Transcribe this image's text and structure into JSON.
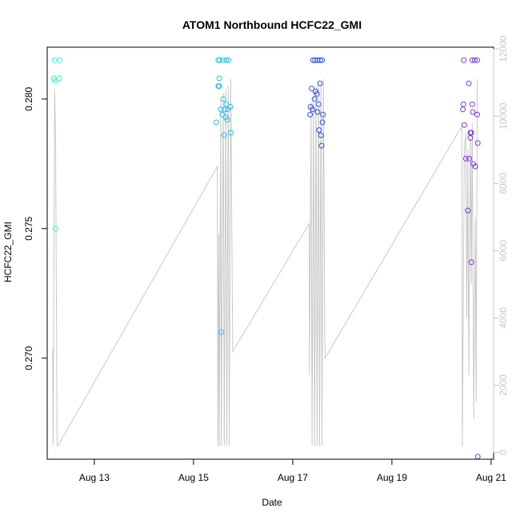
{
  "chart_data": {
    "type": "scatter",
    "title": "ATOM1 Northbound HCFC22_GMI",
    "xlabel": "Date",
    "ylabel": "HCFC22_GMI",
    "x_ticks": [
      {
        "label": "Aug 13",
        "day": 13
      },
      {
        "label": "Aug 15",
        "day": 15
      },
      {
        "label": "Aug 17",
        "day": 17
      },
      {
        "label": "Aug 19",
        "day": 19
      },
      {
        "label": "Aug 21",
        "day": 21
      }
    ],
    "xlim_day": [
      12.05,
      21.05
    ],
    "ylim": [
      0.2661,
      0.282
    ],
    "y_ticks": [
      0.27,
      0.275,
      0.28
    ],
    "y2_ticks": [
      0,
      2000,
      4000,
      6000,
      8000,
      10000,
      12000
    ],
    "y2lim": [
      -200,
      12050
    ],
    "scatter_series": [
      {
        "color": "#33f5c4",
        "points": [
          [
            12.2,
            0.2815
          ],
          [
            12.3,
            0.2815
          ],
          [
            12.18,
            0.2808
          ],
          [
            12.21,
            0.2807
          ],
          [
            12.29,
            0.2808
          ],
          [
            12.22,
            0.275
          ]
        ]
      },
      {
        "color": "#29c0ea",
        "points": [
          [
            15.5,
            0.2815
          ],
          [
            15.53,
            0.2815
          ],
          [
            15.6,
            0.2815
          ],
          [
            15.66,
            0.2815
          ],
          [
            15.71,
            0.2815
          ],
          [
            15.52,
            0.2808
          ],
          [
            15.5,
            0.2805
          ],
          [
            15.52,
            0.2805
          ],
          [
            15.6,
            0.28
          ],
          [
            15.66,
            0.2798
          ],
          [
            15.55,
            0.2796
          ],
          [
            15.63,
            0.2796
          ],
          [
            15.69,
            0.2796
          ],
          [
            15.74,
            0.2797
          ],
          [
            15.58,
            0.2794
          ],
          [
            15.65,
            0.2793
          ],
          [
            15.68,
            0.2792
          ],
          [
            15.46,
            0.2791
          ],
          [
            15.62,
            0.2786
          ],
          [
            15.75,
            0.2787
          ],
          [
            15.56,
            0.271
          ]
        ]
      },
      {
        "color": "#2d4ff0",
        "points": [
          [
            17.41,
            0.2815
          ],
          [
            17.45,
            0.2815
          ],
          [
            17.5,
            0.2815
          ],
          [
            17.55,
            0.2815
          ],
          [
            17.59,
            0.2815
          ],
          [
            17.38,
            0.2804
          ],
          [
            17.55,
            0.2806
          ],
          [
            17.46,
            0.2803
          ],
          [
            17.49,
            0.2802
          ],
          [
            17.44,
            0.28
          ],
          [
            17.52,
            0.2798
          ],
          [
            17.36,
            0.2797
          ],
          [
            17.4,
            0.2796
          ],
          [
            17.5,
            0.2795
          ],
          [
            17.35,
            0.2794
          ],
          [
            17.61,
            0.2794
          ],
          [
            17.6,
            0.2791
          ],
          [
            17.53,
            0.2788
          ],
          [
            17.57,
            0.2786
          ],
          [
            17.58,
            0.2782
          ]
        ]
      },
      {
        "color": "#7a35ee",
        "points": [
          [
            20.45,
            0.2815
          ],
          [
            20.62,
            0.2815
          ],
          [
            20.67,
            0.2815
          ],
          [
            20.72,
            0.2815
          ],
          [
            20.55,
            0.2806
          ],
          [
            20.44,
            0.2798
          ],
          [
            20.62,
            0.2798
          ],
          [
            20.43,
            0.2796
          ],
          [
            20.63,
            0.2795
          ],
          [
            20.72,
            0.2794
          ],
          [
            20.46,
            0.279
          ],
          [
            20.58,
            0.2787
          ],
          [
            20.6,
            0.2787
          ],
          [
            20.58,
            0.2785
          ],
          [
            20.73,
            0.2783
          ],
          [
            20.49,
            0.2777
          ],
          [
            20.56,
            0.2777
          ],
          [
            20.64,
            0.2775
          ],
          [
            20.68,
            0.2774
          ],
          [
            20.53,
            0.2757
          ],
          [
            20.6,
            0.2737
          ],
          [
            20.73,
            0.2662
          ]
        ]
      }
    ],
    "altitude_line": {
      "color": "#c8c8c8",
      "points": [
        [
          12.16,
          3100
        ],
        [
          12.17,
          200
        ],
        [
          12.2,
          10800
        ],
        [
          12.22,
          9300
        ],
        [
          12.25,
          200
        ],
        [
          12.27,
          200
        ],
        [
          15.48,
          8500
        ],
        [
          15.49,
          200
        ],
        [
          15.51,
          6500
        ],
        [
          15.52,
          200
        ],
        [
          15.55,
          10500
        ],
        [
          15.56,
          200
        ],
        [
          15.6,
          10700
        ],
        [
          15.62,
          200
        ],
        [
          15.65,
          10800
        ],
        [
          15.67,
          200
        ],
        [
          15.7,
          10900
        ],
        [
          15.72,
          200
        ],
        [
          15.75,
          11100
        ],
        [
          15.79,
          3000
        ],
        [
          17.33,
          6800
        ],
        [
          17.34,
          2300
        ],
        [
          17.37,
          10400
        ],
        [
          17.39,
          200
        ],
        [
          17.42,
          10800
        ],
        [
          17.44,
          200
        ],
        [
          17.47,
          10900
        ],
        [
          17.49,
          200
        ],
        [
          17.52,
          11000
        ],
        [
          17.54,
          200
        ],
        [
          17.57,
          11000
        ],
        [
          17.59,
          200
        ],
        [
          17.62,
          11100
        ],
        [
          17.65,
          2800
        ],
        [
          20.41,
          9700
        ],
        [
          20.42,
          200
        ],
        [
          20.46,
          9000
        ],
        [
          20.49,
          9500
        ],
        [
          20.51,
          4000
        ],
        [
          20.53,
          9000
        ],
        [
          20.55,
          2300
        ],
        [
          20.58,
          9500
        ],
        [
          20.6,
          5000
        ],
        [
          20.62,
          9800
        ],
        [
          20.65,
          1000
        ],
        [
          20.68,
          7000
        ],
        [
          20.7,
          1500
        ],
        [
          20.72,
          11100
        ]
      ]
    }
  }
}
